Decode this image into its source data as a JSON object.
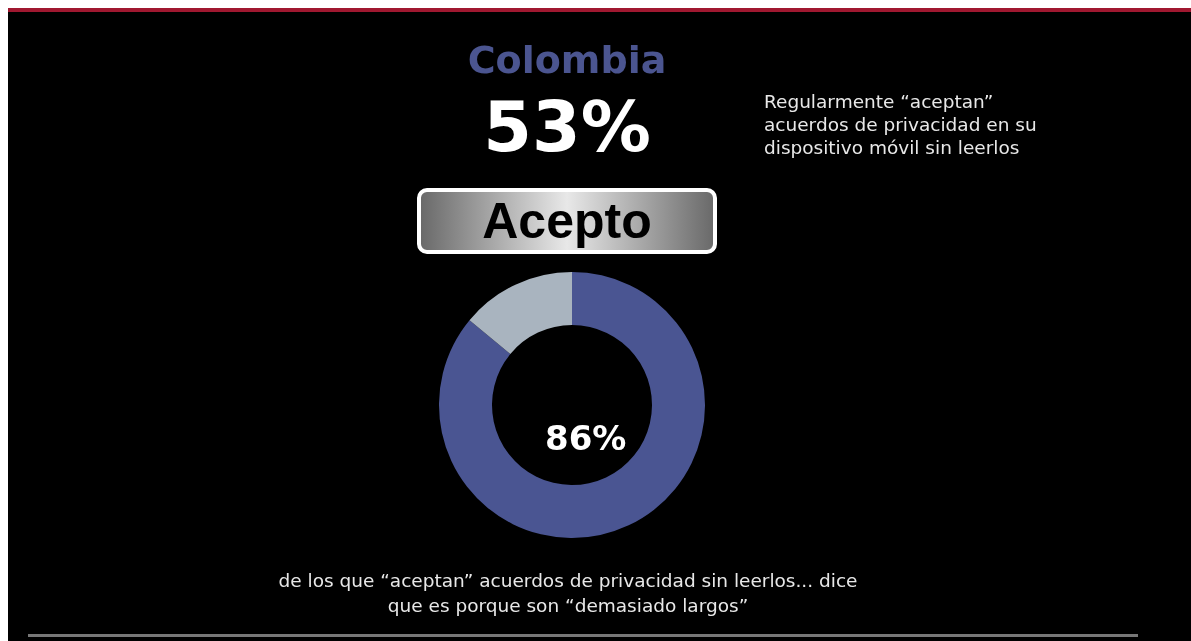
{
  "chart_data": {
    "type": "donut",
    "title": "Colombia",
    "categories": [
      null,
      null
    ],
    "values": [
      86,
      14
    ],
    "colors": [
      "#4a5592",
      "#a9b4bf"
    ],
    "value_labels": [
      "86%",
      null
    ],
    "annotations": [
      "53%",
      "Acepto",
      "Regularmente “aceptan” acuerdos de privacidad en su dispositivo móvil sin leerlos",
      "de los que “aceptan” acuerdos de privacidad sin leerlos... dice que es porque son “demasiado largos”"
    ]
  }
}
